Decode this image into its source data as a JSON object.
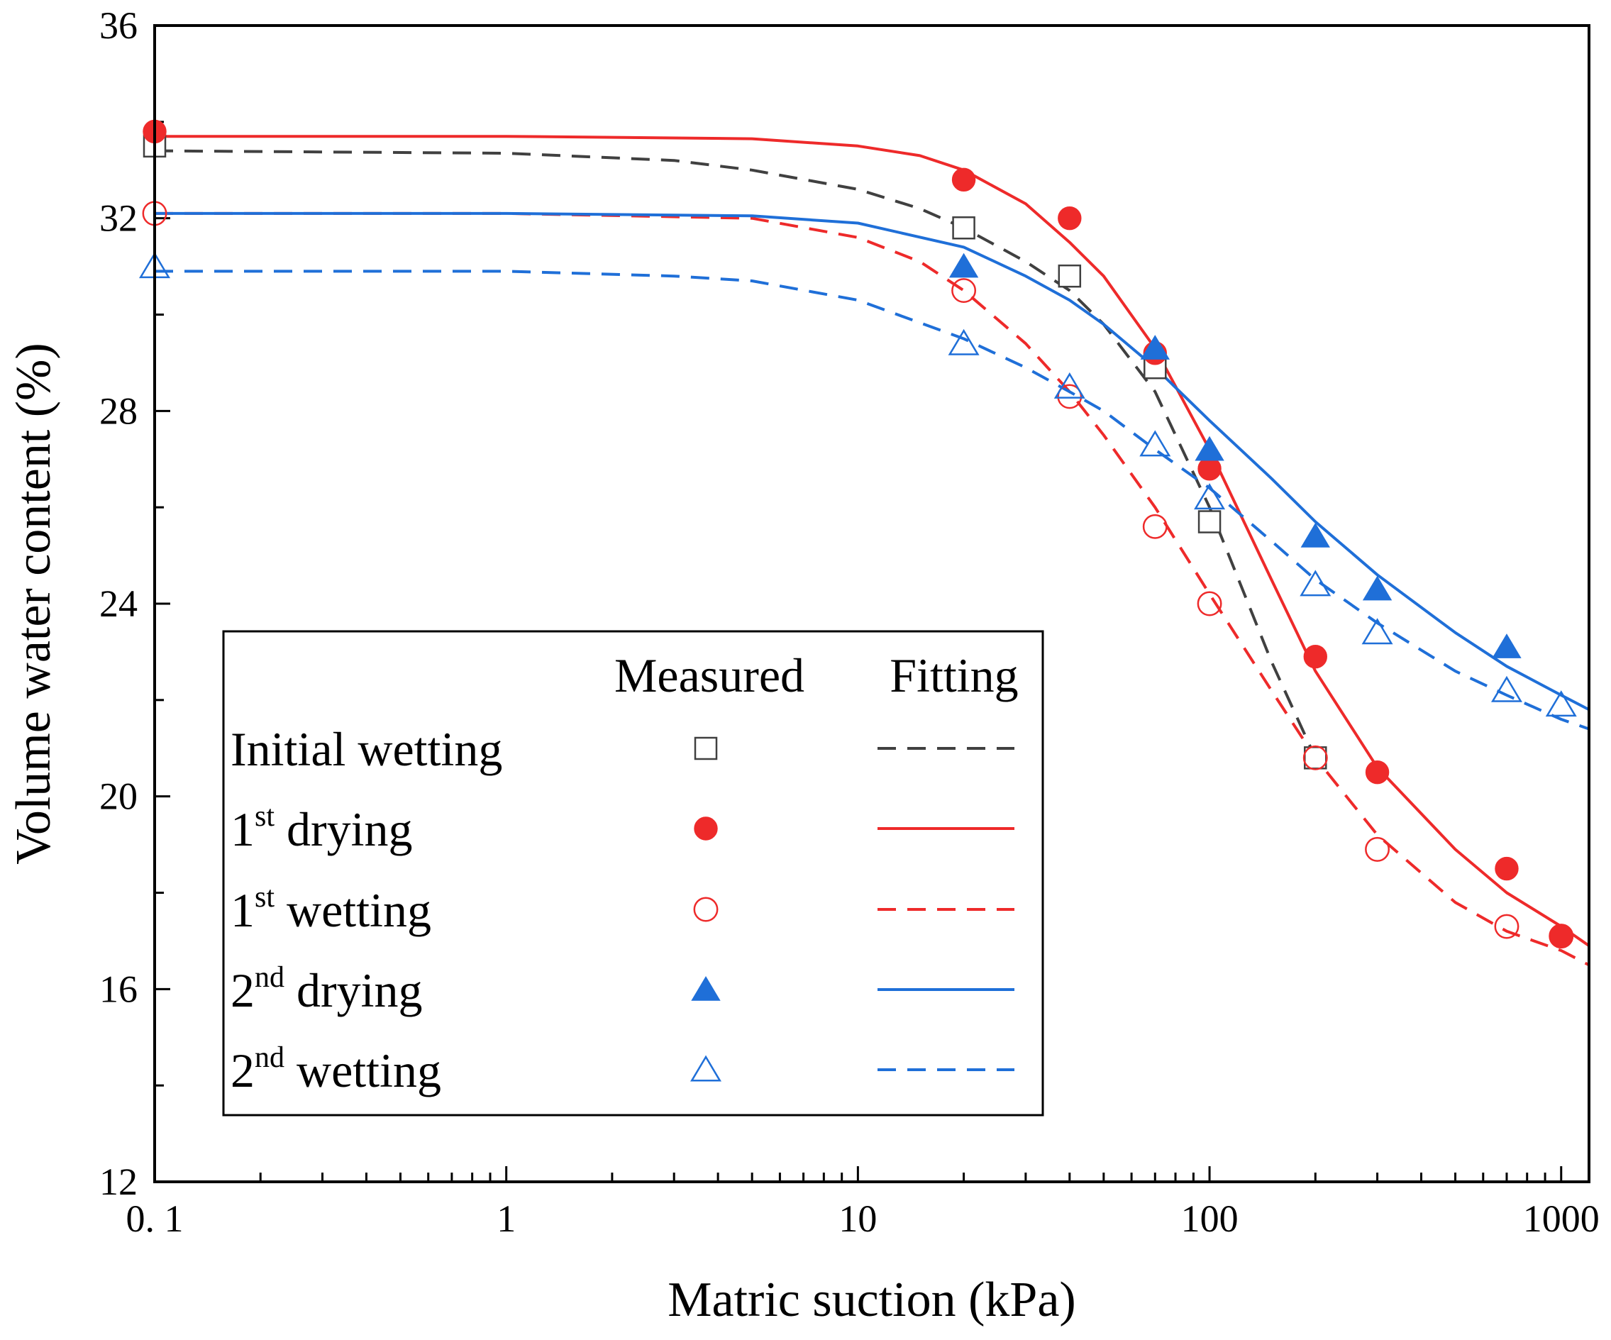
{
  "chart_data": {
    "type": "scatter",
    "xscale": "log",
    "xlabel": "Matric suction (kPa)",
    "ylabel": "Volume water content (%)",
    "xlim": [
      0.1,
      1200
    ],
    "ylim": [
      12,
      36
    ],
    "xticks": [
      {
        "value": 0.1,
        "label": "0. 1"
      },
      {
        "value": 1,
        "label": "1"
      },
      {
        "value": 10,
        "label": "10"
      },
      {
        "value": 100,
        "label": "100"
      },
      {
        "value": 1000,
        "label": "1000"
      }
    ],
    "yticks": [
      {
        "value": 12,
        "label": "12"
      },
      {
        "value": 16,
        "label": "16"
      },
      {
        "value": 20,
        "label": "20"
      },
      {
        "value": 24,
        "label": "24"
      },
      {
        "value": 28,
        "label": "28"
      },
      {
        "value": 32,
        "label": "32"
      },
      {
        "value": 36,
        "label": "36"
      }
    ],
    "legend": {
      "position": "bottom-left",
      "measured_header": "Measured",
      "fitting_header": "Fitting"
    },
    "series": [
      {
        "key": "initial_wetting",
        "name": "Initial wetting",
        "name_main": "Initial wetting",
        "name_sup": "",
        "name_rest": "",
        "color": "#404040",
        "marker": "square-open",
        "fit_style": "dashed",
        "measured": [
          [
            0.1,
            33.5
          ],
          [
            20,
            31.8
          ],
          [
            40,
            30.8
          ],
          [
            70,
            28.9
          ],
          [
            100,
            25.7
          ],
          [
            200,
            20.8
          ]
        ],
        "fit": [
          [
            0.1,
            33.4
          ],
          [
            1,
            33.35
          ],
          [
            3,
            33.2
          ],
          [
            5,
            33.0
          ],
          [
            10,
            32.6
          ],
          [
            15,
            32.2
          ],
          [
            20,
            31.8
          ],
          [
            30,
            31.1
          ],
          [
            40,
            30.5
          ],
          [
            50,
            29.8
          ],
          [
            70,
            28.4
          ],
          [
            100,
            26.0
          ],
          [
            150,
            22.8
          ],
          [
            200,
            20.8
          ]
        ]
      },
      {
        "key": "first_drying",
        "name": "1st drying",
        "name_main": "1",
        "name_sup": "st",
        "name_rest": " drying",
        "color": "#ee2a2a",
        "marker": "circle-filled",
        "fit_style": "solid",
        "measured": [
          [
            0.1,
            33.8
          ],
          [
            20,
            32.8
          ],
          [
            40,
            32.0
          ],
          [
            70,
            29.2
          ],
          [
            100,
            26.8
          ],
          [
            200,
            22.9
          ],
          [
            300,
            20.5
          ],
          [
            700,
            18.5
          ],
          [
            1000,
            17.1
          ]
        ],
        "fit": [
          [
            0.1,
            33.7
          ],
          [
            1,
            33.7
          ],
          [
            5,
            33.65
          ],
          [
            10,
            33.5
          ],
          [
            15,
            33.3
          ],
          [
            20,
            33.0
          ],
          [
            30,
            32.3
          ],
          [
            40,
            31.5
          ],
          [
            50,
            30.8
          ],
          [
            70,
            29.3
          ],
          [
            100,
            27.2
          ],
          [
            150,
            24.5
          ],
          [
            200,
            22.6
          ],
          [
            300,
            20.6
          ],
          [
            500,
            18.9
          ],
          [
            700,
            18.0
          ],
          [
            1000,
            17.3
          ],
          [
            1200,
            16.9
          ]
        ]
      },
      {
        "key": "first_wetting",
        "name": "1st wetting",
        "name_main": "1",
        "name_sup": "st",
        "name_rest": " wetting",
        "color": "#ee2a2a",
        "marker": "circle-open",
        "fit_style": "dashed",
        "measured": [
          [
            0.1,
            32.1
          ],
          [
            20,
            30.5
          ],
          [
            40,
            28.3
          ],
          [
            70,
            25.6
          ],
          [
            100,
            24.0
          ],
          [
            200,
            20.8
          ],
          [
            300,
            18.9
          ],
          [
            700,
            17.3
          ],
          [
            1000,
            17.1
          ]
        ],
        "fit": [
          [
            0.1,
            32.1
          ],
          [
            1,
            32.1
          ],
          [
            5,
            32.0
          ],
          [
            10,
            31.6
          ],
          [
            15,
            31.1
          ],
          [
            20,
            30.5
          ],
          [
            30,
            29.4
          ],
          [
            40,
            28.4
          ],
          [
            50,
            27.5
          ],
          [
            70,
            26.0
          ],
          [
            100,
            24.2
          ],
          [
            150,
            22.2
          ],
          [
            200,
            20.8
          ],
          [
            300,
            19.2
          ],
          [
            500,
            17.8
          ],
          [
            700,
            17.2
          ],
          [
            1000,
            16.8
          ],
          [
            1200,
            16.5
          ]
        ]
      },
      {
        "key": "second_drying",
        "name": "2nd drying",
        "name_main": "2",
        "name_sup": "nd",
        "name_rest": " drying",
        "color": "#1f6fd8",
        "marker": "triangle-filled",
        "fit_style": "solid",
        "measured": [
          [
            20,
            31.0
          ],
          [
            70,
            29.3
          ],
          [
            100,
            27.2
          ],
          [
            200,
            25.4
          ],
          [
            300,
            24.3
          ],
          [
            700,
            23.1
          ]
        ],
        "fit": [
          [
            0.1,
            32.1
          ],
          [
            1,
            32.1
          ],
          [
            5,
            32.05
          ],
          [
            10,
            31.9
          ],
          [
            20,
            31.4
          ],
          [
            30,
            30.8
          ],
          [
            40,
            30.3
          ],
          [
            50,
            29.8
          ],
          [
            70,
            28.9
          ],
          [
            100,
            27.8
          ],
          [
            150,
            26.6
          ],
          [
            200,
            25.7
          ],
          [
            300,
            24.6
          ],
          [
            500,
            23.4
          ],
          [
            700,
            22.7
          ],
          [
            1000,
            22.1
          ],
          [
            1200,
            21.8
          ]
        ]
      },
      {
        "key": "second_wetting",
        "name": "2nd wetting",
        "name_main": "2",
        "name_sup": "nd",
        "name_rest": " wetting",
        "color": "#1f6fd8",
        "marker": "triangle-open",
        "fit_style": "dashed",
        "measured": [
          [
            0.1,
            31.0
          ],
          [
            20,
            29.4
          ],
          [
            40,
            28.5
          ],
          [
            70,
            27.3
          ],
          [
            100,
            26.2
          ],
          [
            200,
            24.4
          ],
          [
            300,
            23.4
          ],
          [
            700,
            22.2
          ],
          [
            1000,
            21.9
          ]
        ],
        "fit": [
          [
            0.1,
            30.9
          ],
          [
            1,
            30.9
          ],
          [
            3,
            30.8
          ],
          [
            5,
            30.7
          ],
          [
            10,
            30.3
          ],
          [
            20,
            29.5
          ],
          [
            30,
            28.9
          ],
          [
            40,
            28.4
          ],
          [
            50,
            28.0
          ],
          [
            70,
            27.2
          ],
          [
            100,
            26.4
          ],
          [
            150,
            25.3
          ],
          [
            200,
            24.5
          ],
          [
            300,
            23.6
          ],
          [
            500,
            22.6
          ],
          [
            700,
            22.1
          ],
          [
            1000,
            21.6
          ],
          [
            1200,
            21.4
          ]
        ]
      }
    ]
  }
}
